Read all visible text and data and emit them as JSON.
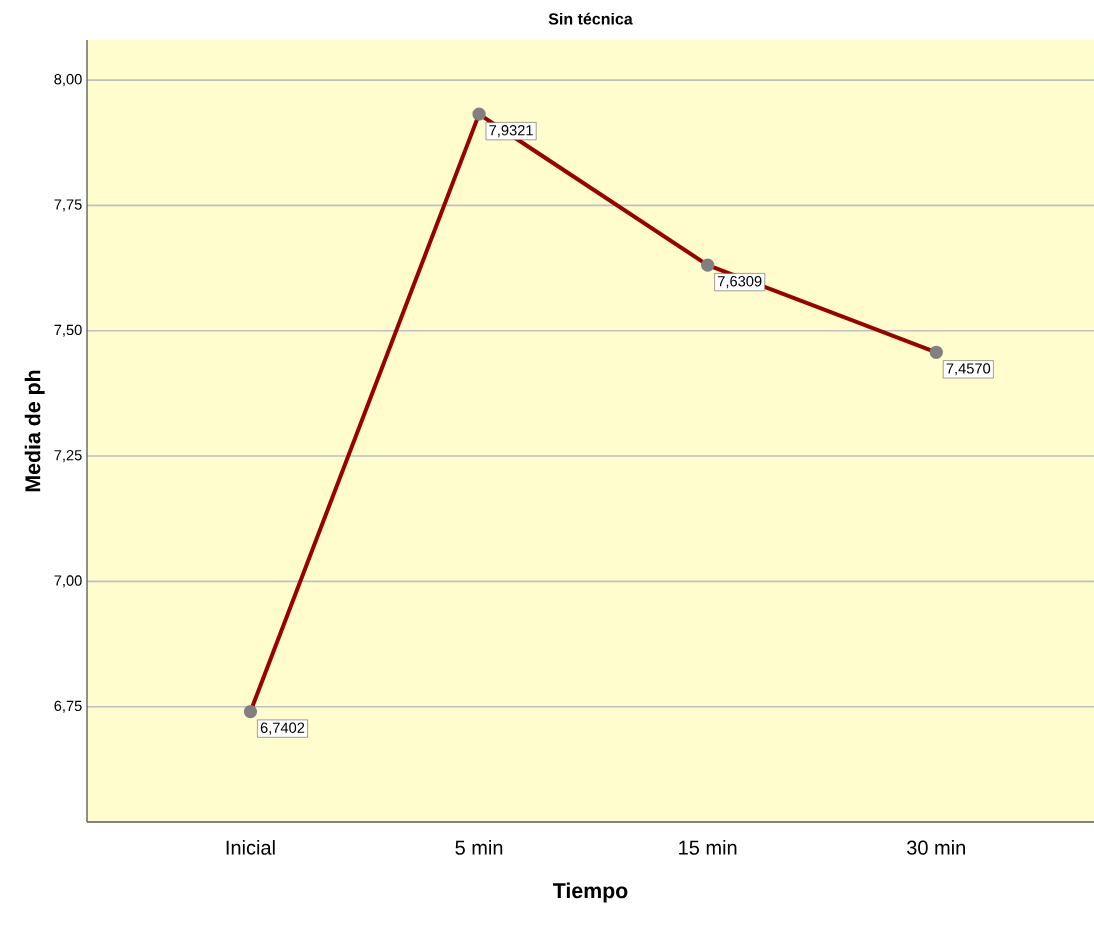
{
  "chart_data": {
    "type": "line",
    "title": "Sin técnica",
    "xlabel": "Tiempo",
    "ylabel": "Media de ph",
    "categories": [
      "Inicial",
      "5 min",
      "15 min",
      "30  min"
    ],
    "series": [
      {
        "color": "#990000",
        "values": [
          6.7402,
          7.9321,
          7.6309,
          7.457
        ],
        "value_labels": [
          "6,7402",
          "7,9321",
          "7,6309",
          "7,4570"
        ]
      }
    ],
    "ylim": [
      6.52,
      8.08
    ],
    "yticks": [
      {
        "value": 6.75,
        "label": "6,75"
      },
      {
        "value": 7.0,
        "label": "7,00"
      },
      {
        "value": 7.25,
        "label": "7,25"
      },
      {
        "value": 7.5,
        "label": "7,50"
      },
      {
        "value": 7.75,
        "label": "7,75"
      },
      {
        "value": 8.0,
        "label": "8,00"
      }
    ],
    "grid": "y",
    "marker": "circle",
    "line_style": "solid"
  }
}
